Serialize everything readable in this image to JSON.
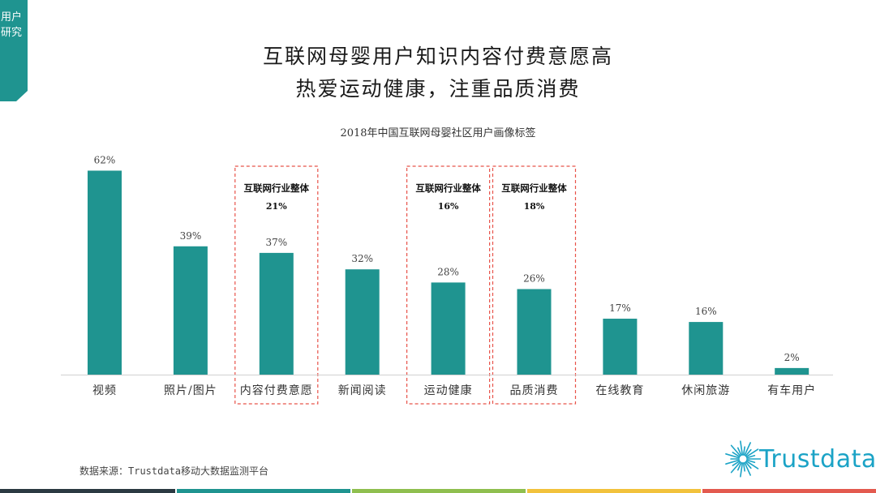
{
  "side_tab": {
    "label": "用户研究",
    "color": "#1f9490"
  },
  "title_line1": "互联网母婴用户知识内容付费意愿高",
  "title_line2": "热爱运动健康，注重品质消费",
  "source": "数据来源：Trustdata移动大数据监测平台",
  "logo_text": "Trustdata",
  "colors": {
    "bar": "#1f9490",
    "highlight_box": "#e8534a",
    "axis": "#d0d0d0",
    "footer": [
      "#2b3a42",
      "#1f9490",
      "#8fbf4f",
      "#f2c23c",
      "#e35a4f"
    ]
  },
  "chart_data": {
    "type": "bar",
    "title": "2018年中国互联网母婴社区用户画像标签",
    "categories": [
      "视频",
      "照片/图片",
      "内容付费意愿",
      "新闻阅读",
      "运动健康",
      "品质消费",
      "在线教育",
      "休闲旅游",
      "有车用户"
    ],
    "values": [
      62,
      39,
      37,
      32,
      28,
      26,
      17,
      16,
      2
    ],
    "value_labels": [
      "62%",
      "39%",
      "37%",
      "32%",
      "28%",
      "26%",
      "17%",
      "16%",
      "2%"
    ],
    "ylim": [
      0,
      70
    ],
    "highlights": [
      {
        "category": "内容付费意愿",
        "label": "互联网行业整体",
        "value": 21,
        "value_label": "21%"
      },
      {
        "category": "运动健康",
        "label": "互联网行业整体",
        "value": 16,
        "value_label": "16%"
      },
      {
        "category": "品质消费",
        "label": "互联网行业整体",
        "value": 18,
        "value_label": "18%"
      }
    ],
    "xlabel": "",
    "ylabel": "",
    "grid": false,
    "legend": "none"
  }
}
